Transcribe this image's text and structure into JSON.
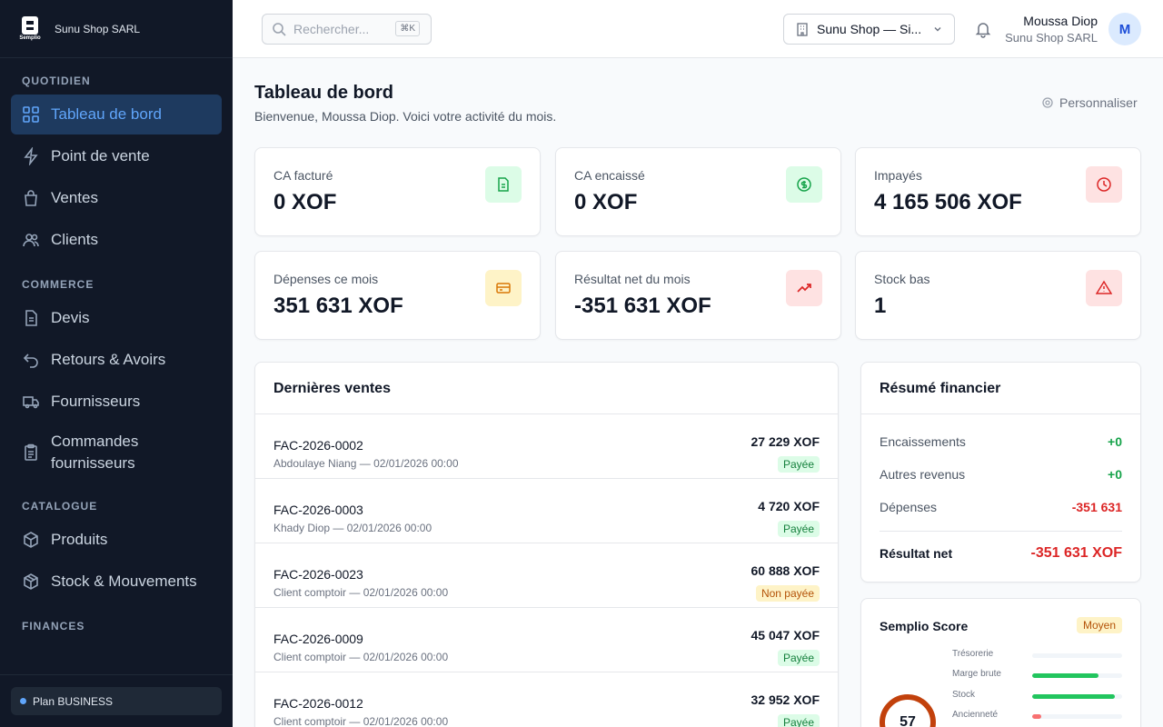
{
  "app": {
    "brand_word": "Semplio",
    "company": "Sunu Shop SARL"
  },
  "sidebar": {
    "sections": [
      {
        "title": "QUOTIDIEN",
        "items": [
          "Tableau de bord",
          "Point de vente",
          "Ventes",
          "Clients"
        ]
      },
      {
        "title": "COMMERCE",
        "items": [
          "Devis",
          "Retours & Avoirs",
          "Fournisseurs",
          "Commandes fournisseurs"
        ]
      },
      {
        "title": "CATALOGUE",
        "items": [
          "Produits",
          "Stock & Mouvements"
        ]
      },
      {
        "title": "FINANCES",
        "items": []
      }
    ],
    "active_item": "Tableau de bord",
    "plan": "Plan BUSINESS"
  },
  "header": {
    "search_placeholder": "Rechercher...",
    "shortcut": "⌘K",
    "company_select": "Sunu Shop — Si...",
    "user_name": "Moussa Diop",
    "user_org": "Sunu Shop SARL",
    "avatar_initial": "M"
  },
  "page": {
    "title": "Tableau de bord",
    "subtitle": "Bienvenue, Moussa Diop. Voici votre activité du mois.",
    "customize": "Personnaliser"
  },
  "stats": [
    {
      "label": "CA facturé",
      "value": "0 XOF",
      "icon": "file-icon",
      "bg": "#dcfce7",
      "fg": "#16a34a"
    },
    {
      "label": "CA encaissé",
      "value": "0 XOF",
      "icon": "dollar-icon",
      "bg": "#dcfce7",
      "fg": "#16a34a"
    },
    {
      "label": "Impayés",
      "value": "4 165 506 XOF",
      "icon": "clock-icon",
      "bg": "#fee2e2",
      "fg": "#dc2626"
    },
    {
      "label": "Dépenses ce mois",
      "value": "351 631 XOF",
      "icon": "card-icon",
      "bg": "#fef3c7",
      "fg": "#d97706"
    },
    {
      "label": "Résultat net du mois",
      "value": "-351 631 XOF",
      "icon": "trend-icon",
      "bg": "#fee2e2",
      "fg": "#dc2626"
    },
    {
      "label": "Stock bas",
      "value": "1",
      "icon": "alert-icon",
      "bg": "#fee2e2",
      "fg": "#dc2626"
    }
  ],
  "sales": {
    "title": "Dernières ventes",
    "rows": [
      {
        "invoice": "FAC-2026-0002",
        "meta": "Abdoulaye Niang — 02/01/2026 00:00",
        "amount": "27 229 XOF",
        "status": "Payée"
      },
      {
        "invoice": "FAC-2026-0003",
        "meta": "Khady Diop — 02/01/2026 00:00",
        "amount": "4 720 XOF",
        "status": "Payée"
      },
      {
        "invoice": "FAC-2026-0023",
        "meta": "Client comptoir — 02/01/2026 00:00",
        "amount": "60 888 XOF",
        "status": "Non payée"
      },
      {
        "invoice": "FAC-2026-0009",
        "meta": "Client comptoir — 02/01/2026 00:00",
        "amount": "45 047 XOF",
        "status": "Payée"
      },
      {
        "invoice": "FAC-2026-0012",
        "meta": "Client comptoir — 02/01/2026 00:00",
        "amount": "32 952 XOF",
        "status": "Payée"
      }
    ]
  },
  "finance": {
    "title": "Résumé financier",
    "rows": [
      {
        "label": "Encaissements",
        "value": "+0",
        "tone": "pos"
      },
      {
        "label": "Autres revenus",
        "value": "+0",
        "tone": "pos"
      },
      {
        "label": "Dépenses",
        "value": "-351 631",
        "tone": "neg"
      }
    ],
    "total_label": "Résultat net",
    "total_value": "-351 631 XOF"
  },
  "score": {
    "title": "Semplio Score",
    "level": "Moyen",
    "value": "57",
    "metrics": [
      {
        "name": "Trésorerie",
        "level": 0.0,
        "color": "#22c55e"
      },
      {
        "name": "Marge brute",
        "level": 0.74,
        "color": "#22c55e"
      },
      {
        "name": "Stock",
        "level": 0.92,
        "color": "#22c55e"
      },
      {
        "name": "Ancienneté",
        "level": 0.1,
        "color": "#f87171"
      }
    ]
  }
}
